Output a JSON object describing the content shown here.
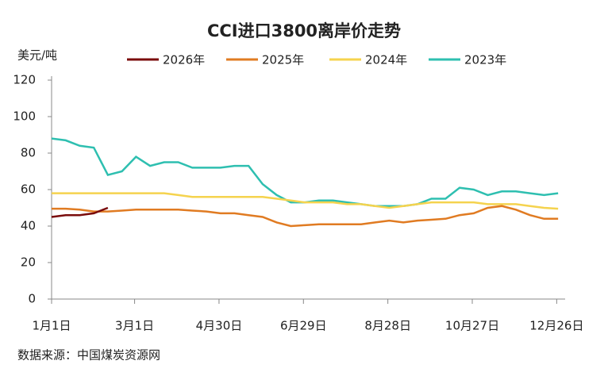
{
  "chart_data": {
    "type": "line",
    "title": "CCI进口3800离岸价走势",
    "y_label": "美元/吨",
    "source": "数据来源：中国煤炭资源网",
    "x": [
      0,
      10,
      20,
      30,
      40,
      50,
      60,
      70,
      80,
      90,
      100,
      110,
      120,
      130,
      140,
      150,
      160,
      170,
      180,
      190,
      200,
      210,
      220,
      230,
      240,
      250,
      260,
      270,
      280,
      290,
      300,
      310,
      320,
      330,
      340,
      350,
      360
    ],
    "xlim": [
      0,
      365
    ],
    "xticks": [
      {
        "value": 0,
        "label": "1月1日"
      },
      {
        "value": 59,
        "label": "3月1日"
      },
      {
        "value": 119,
        "label": "4月30日"
      },
      {
        "value": 179,
        "label": "6月29日"
      },
      {
        "value": 239,
        "label": "8月28日"
      },
      {
        "value": 299,
        "label": "10月27日"
      },
      {
        "value": 359,
        "label": "12月26日"
      }
    ],
    "ylim": [
      0,
      120
    ],
    "yticks": [
      0,
      20,
      40,
      60,
      80,
      100,
      120
    ],
    "grid": false,
    "legend": "top",
    "series": [
      {
        "name": "2026年",
        "color": "#7a0c0c",
        "values": [
          45,
          46,
          46,
          47,
          50,
          null,
          null,
          null,
          null,
          null,
          null,
          null,
          null,
          null,
          null,
          null,
          null,
          null,
          null,
          null,
          null,
          null,
          null,
          null,
          null,
          null,
          null,
          null,
          null,
          null,
          null,
          null,
          null,
          null,
          null,
          null,
          null
        ]
      },
      {
        "name": "2025年",
        "color": "#e07b22",
        "values": [
          49.5,
          49.5,
          49,
          48,
          48,
          48.5,
          49,
          49,
          49,
          49,
          48.5,
          48,
          47,
          47,
          46,
          45,
          42,
          40,
          40.5,
          41,
          41,
          41,
          41,
          42,
          43,
          42,
          43,
          43.5,
          44,
          46,
          47,
          50,
          51,
          49,
          46,
          44,
          44
        ]
      },
      {
        "name": "2024年",
        "color": "#f5d34e",
        "values": [
          58,
          58,
          58,
          58,
          58,
          58,
          58,
          58,
          58,
          57,
          56,
          56,
          56,
          56,
          56,
          56,
          55,
          54,
          53,
          53,
          53,
          52,
          52,
          51,
          50,
          51,
          52,
          53,
          53,
          53,
          53,
          52,
          52,
          52,
          51,
          50,
          49.5
        ]
      },
      {
        "name": "2023年",
        "color": "#2ebfb0",
        "values": [
          88,
          87,
          84,
          83,
          68,
          70,
          78,
          73,
          75,
          75,
          72,
          72,
          72,
          73,
          73,
          63,
          57,
          53,
          53,
          54,
          54,
          53,
          52,
          51,
          51,
          51,
          52,
          55,
          55,
          61,
          60,
          57,
          59,
          59,
          58,
          57,
          58
        ]
      }
    ]
  }
}
